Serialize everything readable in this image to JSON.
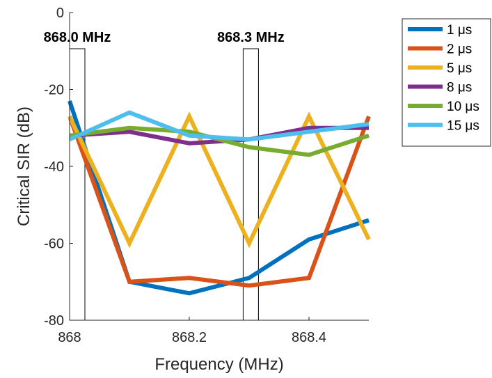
{
  "chart_data": {
    "type": "line",
    "title": "",
    "xlabel": "Frequency (MHz)",
    "ylabel": "Critical SIR (dB)",
    "xlim": [
      868.0,
      868.5
    ],
    "ylim": [
      -80,
      0
    ],
    "xticks": [
      868,
      868.2,
      868.4
    ],
    "xtick_labels": [
      "868",
      "868.2",
      "868.4"
    ],
    "yticks": [
      0,
      -20,
      -40,
      -60,
      -80
    ],
    "ytick_labels": [
      "0",
      "-20",
      "-40",
      "-60",
      "-80"
    ],
    "grid": false,
    "legend_position": "outside-top-right",
    "x": [
      868.0,
      868.1,
      868.2,
      868.3,
      868.4,
      868.5
    ],
    "series": [
      {
        "name": "1 μs",
        "color": "#0072BD",
        "values": [
          -23,
          -70,
          -73,
          -69,
          -59,
          -54
        ]
      },
      {
        "name": "2 μs",
        "color": "#D95319",
        "values": [
          -27,
          -70,
          -69,
          -71,
          -69,
          -27
        ]
      },
      {
        "name": "5 μs",
        "color": "#EDB120",
        "values": [
          -27,
          -60,
          -27,
          -60,
          -27,
          -59
        ]
      },
      {
        "name": "8 μs",
        "color": "#7E2F8E",
        "values": [
          -32,
          -31,
          -34,
          -33,
          -30,
          -30
        ]
      },
      {
        "name": "10 μs",
        "color": "#77AC30",
        "values": [
          -32,
          -30,
          -31,
          -35,
          -37,
          -32
        ]
      },
      {
        "name": "15 μs",
        "color": "#4DBEEE",
        "values": [
          -33,
          -26,
          -32,
          -33,
          -31,
          -29
        ]
      }
    ],
    "annotations": [
      {
        "label": "868.0 MHz",
        "x_range": [
          868.0,
          868.01
        ]
      },
      {
        "label": "868.3 MHz",
        "x_range": [
          868.29,
          868.3
        ]
      }
    ]
  }
}
